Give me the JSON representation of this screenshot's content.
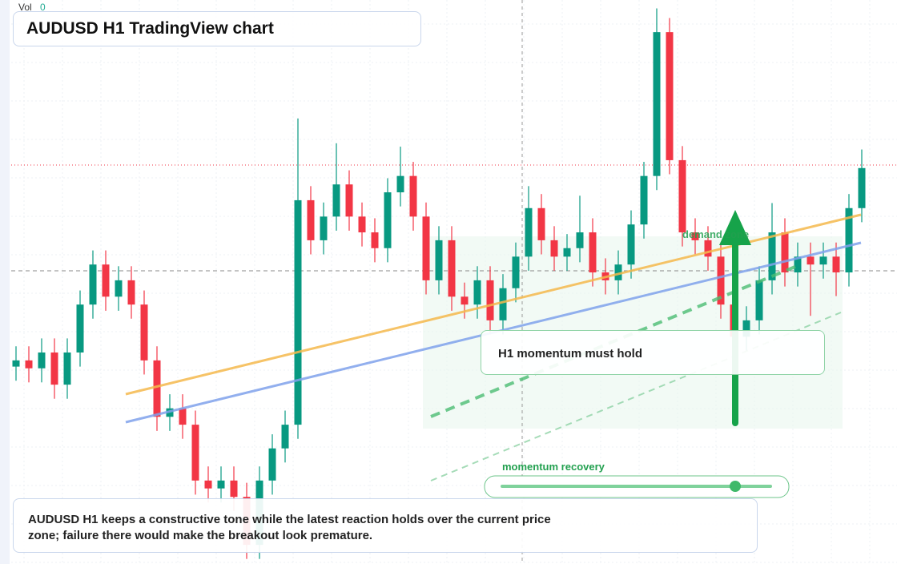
{
  "header": {
    "vol_label": "Vol",
    "vol_value": "0",
    "title": "AUDUSD H1 TradingView chart"
  },
  "chart_data": {
    "type": "candlestick",
    "ylim": [
      0,
      100
    ],
    "up_color": "#089981",
    "down_color": "#f23645",
    "open": [
      35.0,
      36.1,
      34.7,
      37.5,
      31.8,
      37.5,
      46.0,
      53.1,
      47.4,
      50.3,
      46.0,
      36.1,
      26.1,
      27.6,
      24.7,
      14.8,
      13.4,
      14.8,
      11.9,
      3.4,
      14.8,
      20.5,
      24.7,
      64.5,
      57.4,
      61.6,
      67.3,
      61.6,
      58.8,
      56.0,
      65.9,
      68.8,
      61.6,
      50.3,
      57.4,
      47.4,
      46.0,
      50.3,
      43.2,
      48.9,
      54.5,
      63.1,
      57.4,
      54.5,
      56.0,
      58.8,
      51.7,
      50.3,
      53.1,
      60.2,
      68.8,
      94.3,
      71.6,
      58.8,
      57.4,
      54.5,
      46.0,
      40.3,
      43.2,
      50.3,
      58.8,
      51.7,
      54.5,
      53.1,
      54.5,
      51.7,
      63.1
    ],
    "high": [
      38.6,
      38.6,
      40.0,
      40.0,
      40.0,
      48.5,
      55.6,
      55.6,
      52.8,
      52.8,
      48.5,
      38.6,
      30.1,
      30.1,
      27.2,
      17.3,
      17.3,
      17.3,
      14.4,
      17.3,
      23.0,
      27.2,
      79.0,
      67.0,
      64.1,
      74.6,
      69.8,
      64.1,
      61.3,
      68.4,
      74.0,
      71.3,
      64.1,
      59.9,
      59.9,
      49.9,
      52.8,
      52.8,
      51.4,
      57.0,
      67.0,
      65.6,
      59.9,
      58.5,
      65.3,
      61.3,
      54.2,
      55.6,
      62.7,
      71.3,
      98.5,
      96.8,
      74.1,
      61.3,
      59.9,
      57.0,
      48.5,
      45.7,
      52.8,
      64.0,
      61.3,
      57.0,
      57.0,
      57.0,
      57.0,
      65.6,
      73.5
    ],
    "low": [
      32.5,
      32.2,
      32.2,
      29.3,
      29.3,
      35.0,
      43.5,
      44.9,
      44.9,
      43.5,
      33.6,
      23.6,
      23.6,
      22.2,
      12.3,
      10.9,
      10.9,
      9.4,
      0.9,
      0.9,
      12.3,
      18.0,
      22.2,
      54.9,
      54.9,
      59.1,
      59.1,
      56.3,
      53.5,
      53.5,
      63.4,
      59.1,
      47.8,
      47.8,
      44.9,
      43.5,
      43.5,
      40.7,
      40.7,
      46.4,
      52.0,
      54.9,
      52.0,
      52.0,
      53.5,
      49.2,
      47.8,
      47.8,
      50.6,
      57.7,
      66.3,
      69.1,
      56.3,
      54.9,
      52.0,
      43.5,
      30.0,
      37.8,
      40.7,
      47.8,
      49.2,
      49.2,
      44.0,
      50.6,
      47.5,
      49.2,
      60.6
    ],
    "close": [
      36.1,
      34.7,
      37.5,
      31.8,
      37.5,
      46.0,
      53.1,
      47.4,
      50.3,
      46.0,
      36.1,
      26.1,
      27.6,
      24.7,
      14.8,
      13.4,
      14.8,
      11.9,
      3.4,
      14.8,
      20.5,
      24.7,
      64.5,
      57.4,
      61.6,
      67.3,
      61.6,
      58.8,
      56.0,
      65.9,
      68.8,
      61.6,
      50.3,
      57.4,
      47.4,
      46.0,
      50.3,
      43.2,
      48.9,
      54.5,
      63.1,
      57.4,
      54.5,
      56.0,
      58.8,
      51.7,
      50.3,
      53.1,
      60.2,
      68.8,
      94.3,
      71.6,
      58.8,
      57.4,
      54.5,
      46.0,
      40.3,
      43.2,
      50.3,
      58.8,
      51.7,
      54.5,
      53.1,
      54.5,
      51.7,
      63.1,
      70.2
    ]
  },
  "annotations": {
    "callout": "H1 momentum must hold",
    "zone_label": "demand zone",
    "slider_label": "momentum recovery"
  },
  "footer": {
    "description": "AUDUSD H1 keeps a constructive tone while the latest reaction holds over the current price zone; failure there would make the breakout look premature."
  }
}
